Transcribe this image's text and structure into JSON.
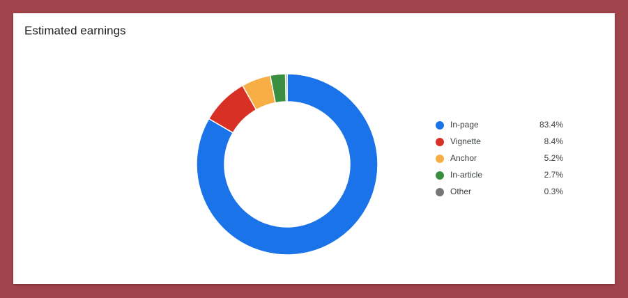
{
  "chart_data": {
    "type": "pie",
    "donut": true,
    "title": "Estimated earnings",
    "categories": [
      "In-page",
      "Vignette",
      "Anchor",
      "In-article",
      "Other"
    ],
    "values": [
      83.4,
      8.4,
      5.2,
      2.7,
      0.3
    ],
    "value_labels": [
      "83.4%",
      "8.4%",
      "5.2%",
      "2.7%",
      "0.3%"
    ],
    "colors": [
      "#1a73e8",
      "#d93025",
      "#f6ae45",
      "#3a8e3f",
      "#757575"
    ],
    "legend": "right"
  }
}
